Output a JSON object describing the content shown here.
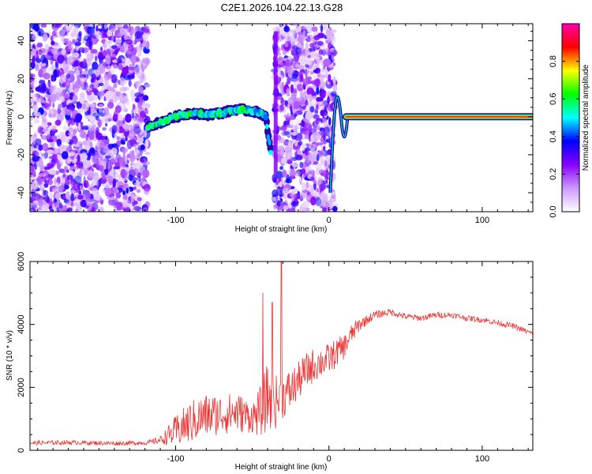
{
  "title": "C2E1.2026.104.22.13.G28",
  "chart_data": [
    {
      "type": "heatmap",
      "xlabel": "Height of straight line (km)",
      "ylabel": "Frequency (Hz)",
      "xlim": [
        -195,
        133
      ],
      "ylim": [
        -50,
        49
      ],
      "x_ticks": [
        -100,
        0,
        100
      ],
      "y_ticks": [
        -40,
        -20,
        0,
        20,
        40
      ],
      "colorbar": {
        "label": "Normalized spectral amplitude",
        "range": [
          0,
          1
        ],
        "ticks": [
          0.0,
          0.2,
          0.4,
          0.6,
          0.8
        ],
        "tick_labels": [
          "0.0",
          "0.2",
          "0.4",
          "0.6",
          "0.8"
        ],
        "colors": [
          "#ffffff",
          "#cc99ff",
          "#8800ff",
          "#0000ff",
          "#00ffff",
          "#00ff00",
          "#ffff00",
          "#ff0000",
          "#ff00aa"
        ]
      },
      "noise_regions": [
        [
          -195,
          -118
        ],
        [
          -36,
          4
        ]
      ],
      "ridge": {
        "x": [
          -118,
          -110,
          -100,
          -90,
          -80,
          -70,
          -60,
          -50,
          -45,
          -41,
          -40,
          -38
        ],
        "y": [
          -5,
          -3,
          0,
          2,
          1,
          2,
          4,
          3,
          2,
          0,
          -8,
          -18
        ]
      },
      "strip_segment": {
        "x": [
          -36,
          -35
        ],
        "y": [
          -30,
          45
        ]
      },
      "carrier": {
        "x_start": 5,
        "x_end": 133,
        "y": 0,
        "amplitude": 0.85
      }
    },
    {
      "type": "line",
      "xlabel": "Height of straight line (km)",
      "ylabel": "SNR (10 * v/v)",
      "xlim": [
        -195,
        133
      ],
      "ylim": [
        0,
        6000
      ],
      "x_ticks": [
        -100,
        0,
        100
      ],
      "y_ticks": [
        0,
        2000,
        4000,
        6000
      ],
      "series": [
        {
          "name": "SNR",
          "color": "#ee3333",
          "x": [
            -195,
            -170,
            -140,
            -118,
            -110,
            -100,
            -90,
            -80,
            -70,
            -60,
            -50,
            -45,
            -40,
            -36,
            -30,
            -25,
            -20,
            -15,
            -10,
            -5,
            0,
            5,
            10,
            15,
            20,
            25,
            30,
            40,
            50,
            60,
            70,
            80,
            90,
            100,
            110,
            120,
            133
          ],
          "y": [
            230,
            250,
            220,
            240,
            330,
            600,
            900,
            1100,
            1150,
            1200,
            1050,
            1200,
            1700,
            1500,
            1700,
            1900,
            2200,
            2500,
            2700,
            2800,
            2900,
            3100,
            3300,
            3700,
            4000,
            4150,
            4300,
            4400,
            4250,
            4200,
            4300,
            4300,
            4200,
            4150,
            4050,
            3950,
            3700
          ],
          "noise": [
            70,
            70,
            70,
            70,
            120,
            500,
            700,
            700,
            650,
            650,
            500,
            800,
            1100,
            900,
            700,
            700,
            600,
            600,
            550,
            500,
            500,
            450,
            400,
            320,
            220,
            160,
            130,
            110,
            100,
            100,
            100,
            90,
            90,
            90,
            90,
            90,
            80
          ],
          "spikes": [
            {
              "x": -43,
              "y": 5000
            },
            {
              "x": -37,
              "y": 4700
            },
            {
              "x": -31,
              "y": 6050
            }
          ]
        }
      ]
    }
  ]
}
